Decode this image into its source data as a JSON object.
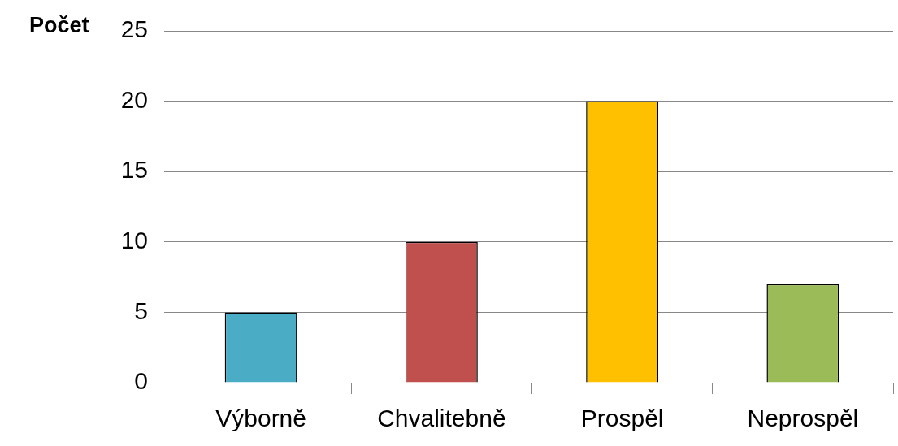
{
  "chart_data": {
    "type": "bar",
    "ylabel": "Počet",
    "categories": [
      "Výborně",
      "Chvalitebně",
      "Prospěl",
      "Neprospěl"
    ],
    "values": [
      5,
      10,
      20,
      7
    ],
    "colors": [
      "#4bacc6",
      "#c0504d",
      "#ffc000",
      "#9bbb59"
    ],
    "ylim": [
      0,
      25
    ],
    "yticks": [
      0,
      5,
      10,
      15,
      20,
      25
    ],
    "grid": "y"
  }
}
